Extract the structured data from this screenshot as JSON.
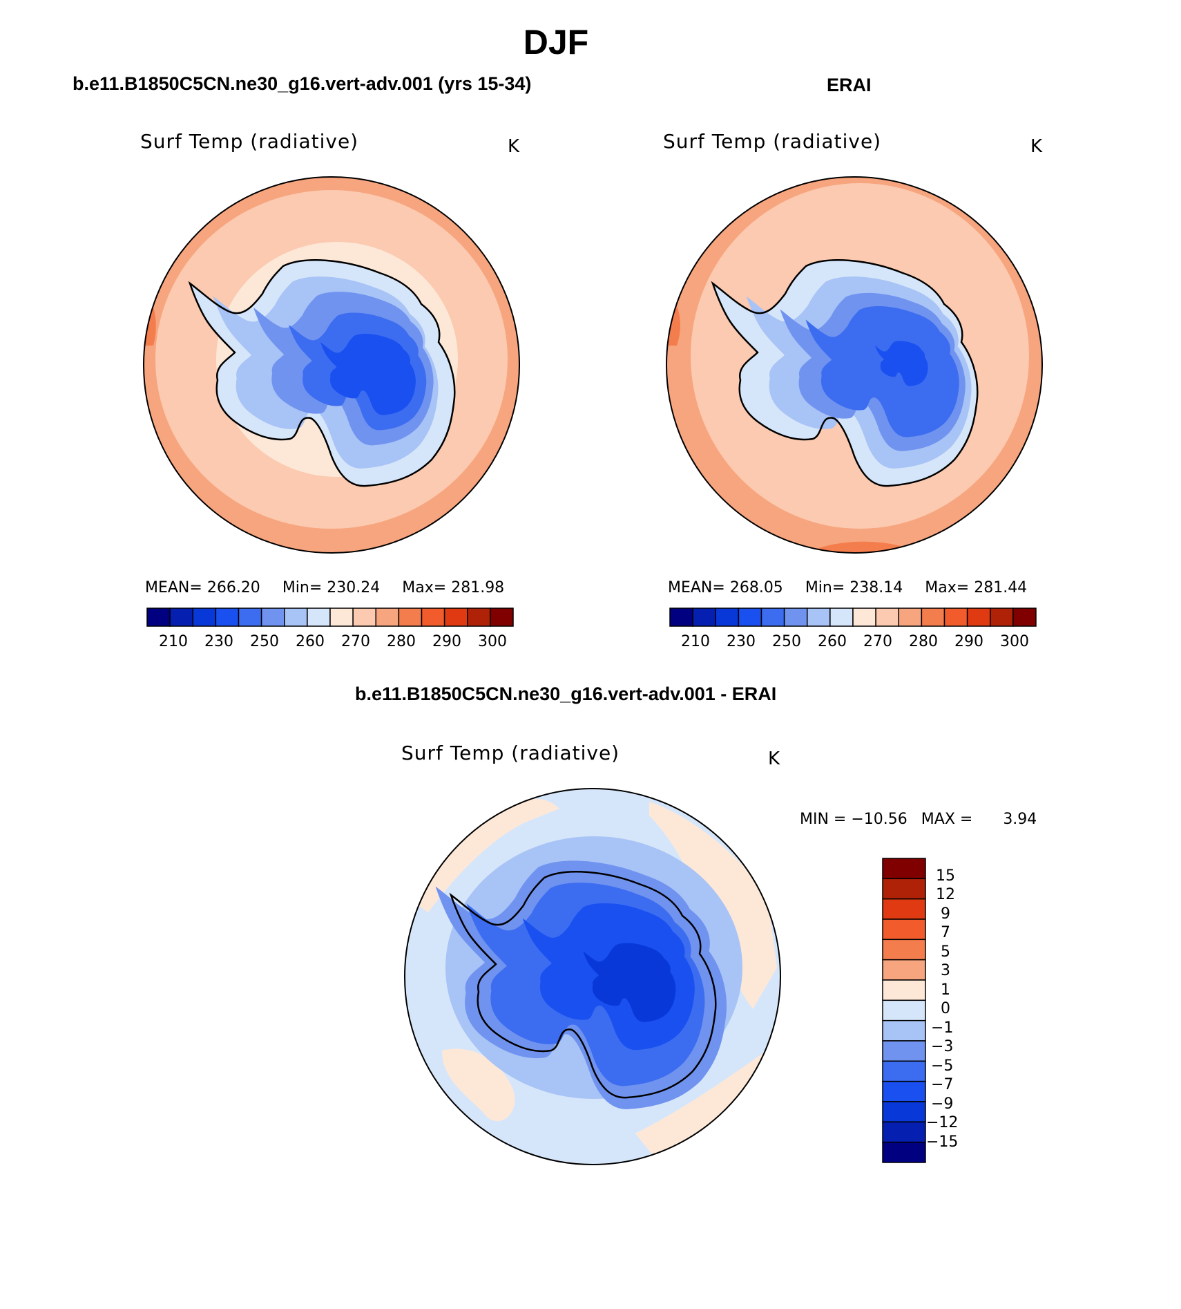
{
  "season": "DJF",
  "colors": {
    "seq": [
      "#000080",
      "#0520b0",
      "#0838d8",
      "#1a50f0",
      "#3c6df0",
      "#7093f0",
      "#a8c3f5",
      "#d6e6fa",
      "#fde8d8",
      "#fbcab0",
      "#f7a57f",
      "#f47d4d",
      "#f25c2c",
      "#df3a12",
      "#b02208",
      "#800000"
    ],
    "diff": [
      "#000080",
      "#0520b0",
      "#0838d8",
      "#1a50f0",
      "#3c6df0",
      "#7093f0",
      "#a8c3f5",
      "#d6e6fa",
      "#fde8d8",
      "#f7a57f",
      "#f47d4d",
      "#f25c2c",
      "#df3a12",
      "#b02208",
      "#800000"
    ],
    "coast": "#000000"
  },
  "panels": {
    "model": {
      "header": "b.e11.B1850C5CN.ne30_g16.vert-adv.001 (yrs 15-34)",
      "field": "Surf Temp (radiative)",
      "units": "K",
      "stats": {
        "mean_label": "MEAN=",
        "mean": "266.20",
        "min_label": "Min=",
        "min": "230.24",
        "max_label": "Max=",
        "max": "281.98"
      }
    },
    "obs": {
      "header": "ERAI",
      "field": "Surf Temp (radiative)",
      "units": "K",
      "stats": {
        "mean_label": "MEAN=",
        "mean": "268.05",
        "min_label": "Min=",
        "min": "238.14",
        "max_label": "Max=",
        "max": "281.44"
      }
    },
    "diff": {
      "header": "b.e11.B1850C5CN.ne30_g16.vert-adv.001 - ERAI",
      "field": "Surf Temp (radiative)",
      "units": "K",
      "minmax": {
        "min_label": "MIN =",
        "min": "−10.56",
        "max_label": "MAX =",
        "max": "3.94"
      }
    }
  },
  "colorbar_labels": [
    "210",
    "230",
    "250",
    "260",
    "270",
    "280",
    "290",
    "300"
  ],
  "diff_colorbar_labels": [
    "15",
    "12",
    "9",
    "7",
    "5",
    "3",
    "1",
    "0",
    "−1",
    "−3",
    "−5",
    "−7",
    "−9",
    "−12",
    "−15"
  ]
}
